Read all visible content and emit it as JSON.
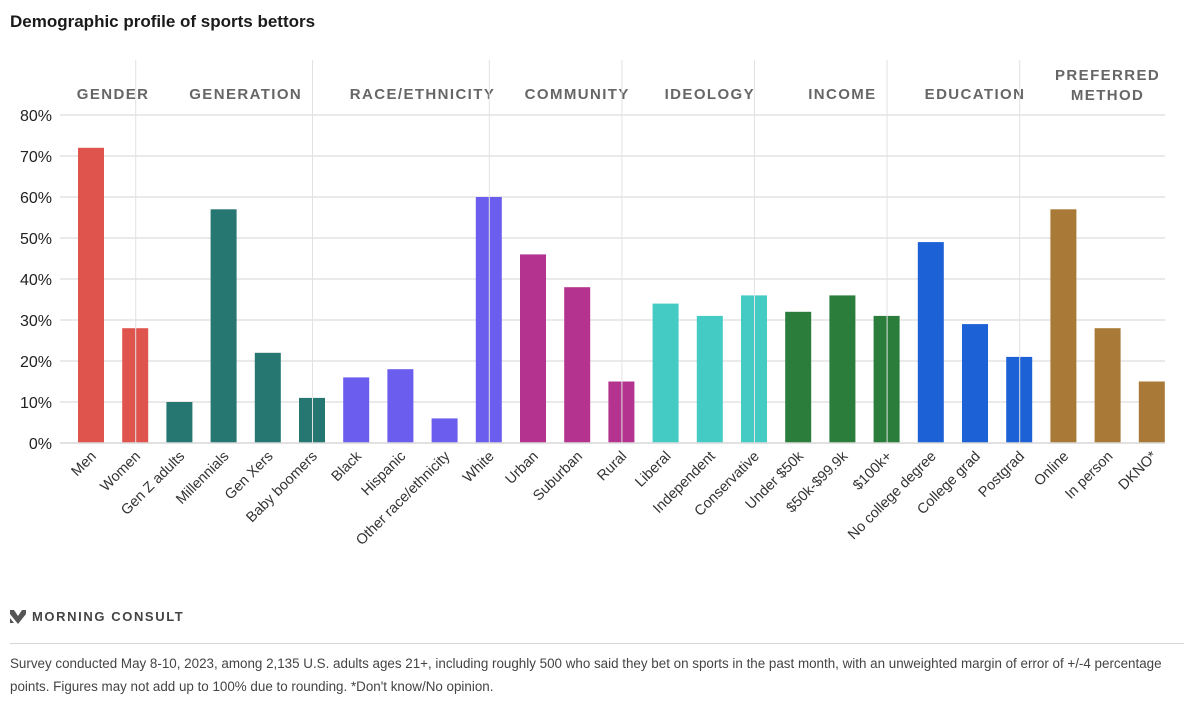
{
  "title": "Demographic profile of sports bettors",
  "brand": {
    "name": "MORNING CONSULT",
    "logo_icon": "morning-consult-logo-icon"
  },
  "footnote": "Survey conducted May 8-10, 2023, among 2,135 U.S. adults ages 21+, including roughly 500 who said they bet on sports in the past month, with an unweighted margin of error of +/-4 percentage points. Figures may not add up to 100% due to rounding. *Don't know/No opinion.",
  "chart_data": {
    "type": "bar",
    "title": "Demographic profile of sports bettors",
    "xlabel": "",
    "ylabel": "",
    "ylim": [
      0,
      80
    ],
    "yticks": [
      0,
      10,
      20,
      30,
      40,
      50,
      60,
      70,
      80
    ],
    "ytick_labels": [
      "0%",
      "10%",
      "20%",
      "30%",
      "40%",
      "50%",
      "60%",
      "70%",
      "80%"
    ],
    "grid": true,
    "groups": [
      {
        "name": "GENDER",
        "color": "#e0544e",
        "categories": [
          "Men",
          "Women"
        ],
        "values": [
          72,
          28
        ]
      },
      {
        "name": "GENERATION",
        "color": "#267772",
        "categories": [
          "Gen Z adults",
          "Millennials",
          "Gen Xers",
          "Baby boomers"
        ],
        "values": [
          10,
          57,
          22,
          11
        ]
      },
      {
        "name": "RACE/ETHNICITY",
        "color": "#6b5ded",
        "categories": [
          "Black",
          "Hispanic",
          "Other race/ethnicity",
          "White"
        ],
        "values": [
          16,
          18,
          6,
          60
        ]
      },
      {
        "name": "COMMUNITY",
        "color": "#b3338f",
        "categories": [
          "Urban",
          "Suburban",
          "Rural"
        ],
        "values": [
          46,
          38,
          15
        ]
      },
      {
        "name": "IDEOLOGY",
        "color": "#43cbc4",
        "categories": [
          "Liberal",
          "Independent",
          "Conservative"
        ],
        "values": [
          34,
          31,
          36
        ]
      },
      {
        "name": "INCOME",
        "color": "#2a7d3a",
        "categories": [
          "Under $50k",
          "$50k-$99.9k",
          "$100k+"
        ],
        "values": [
          32,
          36,
          31
        ]
      },
      {
        "name": "EDUCATION",
        "color": "#1d61d6",
        "categories": [
          "No college degree",
          "College grad",
          "Postgrad"
        ],
        "values": [
          49,
          29,
          21
        ]
      },
      {
        "name": "PREFERRED\nMETHOD",
        "color": "#a97a37",
        "categories": [
          "Online",
          "In person",
          "DKNO*"
        ],
        "values": [
          57,
          28,
          15
        ]
      }
    ]
  }
}
